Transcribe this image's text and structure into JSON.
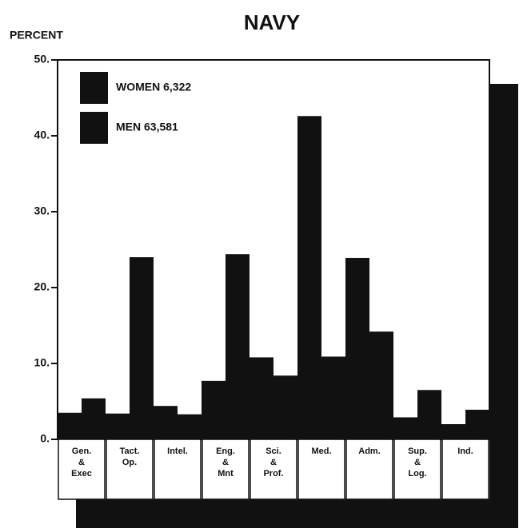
{
  "chart_data": {
    "type": "bar",
    "title": "NAVY",
    "y_label": "PERCENT",
    "categories": [
      "Gen.\n&\nExec",
      "Tact.\nOp.",
      "Intel.",
      "Eng.\n&\nMnt",
      "Sci.\n&\nProf.",
      "Med.",
      "Adm.",
      "Sup.\n&\nLog.",
      "Ind."
    ],
    "series": [
      {
        "name": "WOMEN 6,322",
        "color": "#111111",
        "values": [
          3.5,
          3.4,
          4.4,
          7.7,
          10.8,
          42.6,
          23.9,
          2.9,
          2.0
        ]
      },
      {
        "name": "MEN 63,581",
        "color": "#111111",
        "values": [
          5.4,
          24.0,
          3.3,
          24.4,
          8.4,
          10.9,
          14.2,
          6.5,
          3.9
        ]
      }
    ],
    "ylim": [
      0,
      50
    ],
    "yticks": [
      {
        "value": 0,
        "label": "0."
      },
      {
        "value": 10,
        "label": "10."
      },
      {
        "value": 20,
        "label": "20."
      },
      {
        "value": 30,
        "label": "30."
      },
      {
        "value": 40,
        "label": "40."
      },
      {
        "value": 50,
        "label": "50."
      }
    ],
    "legend": "top-left"
  }
}
